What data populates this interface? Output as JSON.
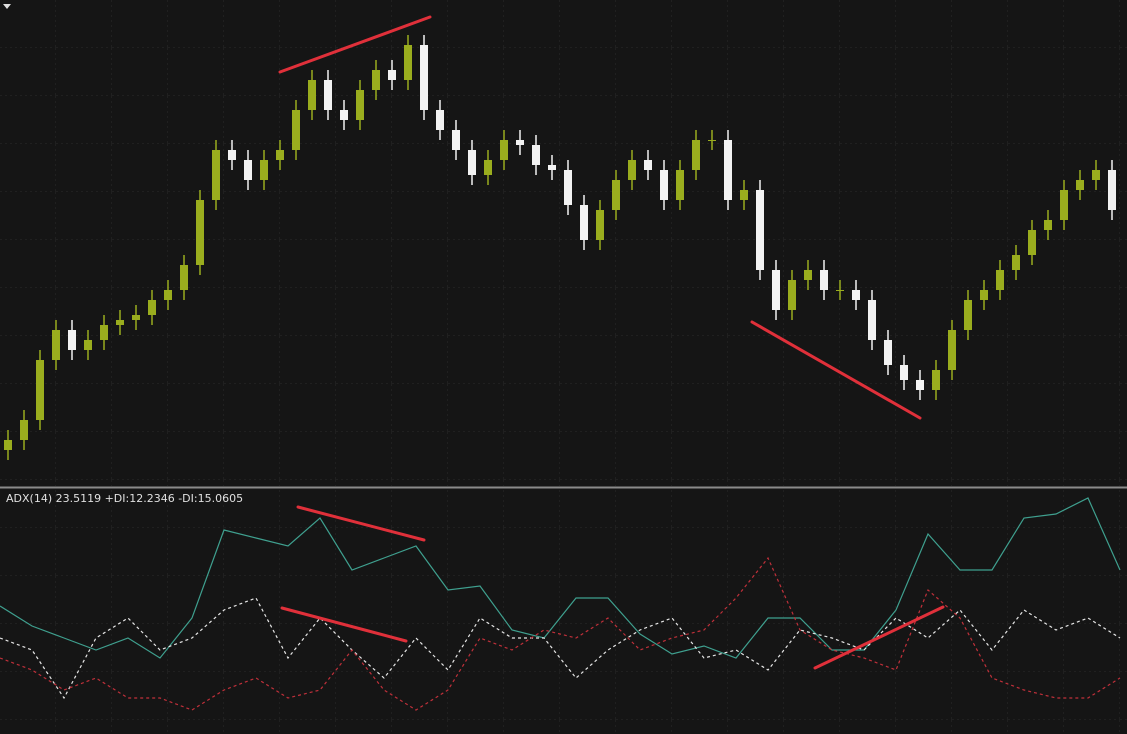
{
  "chart_data": [
    {
      "type": "candlestick",
      "up_color": "#9aad1e",
      "down_color": "#f2f2f2",
      "ylim": [
        0,
        480
      ],
      "open": [
        40,
        50,
        70,
        130,
        160,
        140,
        150,
        165,
        170,
        175,
        190,
        200,
        225,
        290,
        340,
        330,
        310,
        330,
        340,
        380,
        410,
        380,
        370,
        400,
        420,
        410,
        445,
        380,
        360,
        340,
        315,
        330,
        350,
        345,
        325,
        320,
        285,
        250,
        280,
        310,
        330,
        320,
        290,
        320,
        350,
        350,
        290,
        300,
        220,
        180,
        210,
        220,
        200,
        200,
        190,
        150,
        125,
        110,
        100,
        120,
        160,
        190,
        200,
        220,
        235,
        260,
        270,
        300,
        310,
        320
      ],
      "high": [
        60,
        80,
        140,
        170,
        170,
        160,
        175,
        180,
        185,
        200,
        210,
        235,
        300,
        350,
        350,
        340,
        340,
        350,
        390,
        420,
        420,
        390,
        410,
        430,
        430,
        455,
        455,
        390,
        370,
        350,
        340,
        360,
        360,
        355,
        335,
        330,
        295,
        290,
        320,
        340,
        340,
        330,
        330,
        360,
        360,
        360,
        310,
        310,
        230,
        220,
        230,
        230,
        210,
        210,
        200,
        160,
        135,
        120,
        130,
        170,
        200,
        210,
        230,
        245,
        270,
        280,
        310,
        320,
        330,
        330
      ],
      "low": [
        30,
        40,
        60,
        120,
        130,
        130,
        140,
        155,
        160,
        165,
        180,
        190,
        215,
        280,
        320,
        300,
        300,
        320,
        330,
        370,
        370,
        360,
        360,
        390,
        400,
        400,
        370,
        350,
        330,
        305,
        305,
        320,
        335,
        315,
        310,
        275,
        240,
        240,
        270,
        300,
        310,
        280,
        280,
        310,
        340,
        280,
        280,
        210,
        170,
        170,
        200,
        190,
        190,
        180,
        140,
        115,
        100,
        90,
        90,
        110,
        150,
        180,
        190,
        210,
        225,
        250,
        260,
        290,
        300,
        270
      ],
      "close": [
        50,
        70,
        130,
        160,
        140,
        150,
        165,
        170,
        175,
        190,
        200,
        225,
        290,
        340,
        330,
        310,
        330,
        340,
        380,
        410,
        380,
        370,
        400,
        420,
        410,
        445,
        380,
        360,
        340,
        315,
        330,
        350,
        345,
        325,
        320,
        285,
        250,
        280,
        310,
        330,
        320,
        290,
        320,
        350,
        350,
        290,
        300,
        220,
        180,
        210,
        220,
        200,
        200,
        190,
        150,
        125,
        110,
        100,
        120,
        160,
        190,
        200,
        220,
        235,
        260,
        270,
        300,
        310,
        320,
        280
      ]
    },
    {
      "type": "line",
      "title": "ADX(14) 23.5119 +DI:12.2346 -DI:15.0605",
      "ylim": [
        0,
        60
      ],
      "series": [
        {
          "color": "#3fa08f",
          "dashed": false,
          "values": [
            32,
            27,
            24,
            21,
            24,
            19,
            29,
            51,
            49,
            47,
            54,
            41,
            44,
            47,
            36,
            37,
            26,
            24,
            34,
            34,
            25,
            20,
            22,
            19,
            29,
            29,
            21,
            21,
            31,
            50,
            41,
            41,
            54,
            55,
            59,
            41
          ]
        },
        {
          "color": "#e6e6e6",
          "dashed": true,
          "values": [
            24,
            21,
            9,
            24,
            29,
            21,
            24,
            31,
            34,
            19,
            29,
            21,
            14,
            24,
            16,
            29,
            24,
            24,
            14,
            21,
            26,
            29,
            19,
            21,
            16,
            26,
            24,
            21,
            29,
            24,
            31,
            21,
            31,
            26,
            29,
            24
          ]
        },
        {
          "color": "#c0303a",
          "dashed": true,
          "values": [
            19,
            16,
            11,
            14,
            9,
            9,
            6,
            11,
            14,
            9,
            11,
            21,
            11,
            6,
            11,
            24,
            21,
            26,
            24,
            29,
            21,
            24,
            26,
            34,
            44,
            26,
            21,
            19,
            16,
            36,
            29,
            14,
            11,
            9,
            9,
            14
          ]
        }
      ]
    }
  ]
}
